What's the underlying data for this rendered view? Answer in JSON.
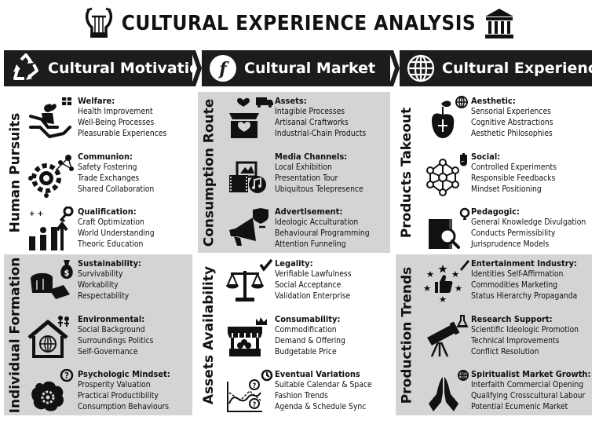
{
  "title": "CULTURAL EXPERIENCE ANALYSIS",
  "columns": [
    {
      "header": "Cultural Motivations",
      "header_icon": "recycle-icon",
      "sections": [
        {
          "label": "Human Pursuits",
          "items": [
            {
              "heading": "Welfare:",
              "icon": "caring-hands-icon",
              "lines": [
                "Health Improvement",
                "Well-Being Processes",
                "Pleasurable Experiences"
              ]
            },
            {
              "heading": "Communion:",
              "icon": "network-gear-icon",
              "lines": [
                "Safety Fostering",
                "Trade Exchanges",
                "Shared Collaboration"
              ]
            },
            {
              "heading": "Qualification:",
              "icon": "growth-people-icon",
              "lines": [
                "Craft Optimization",
                "World Understanding",
                "Theoric Education"
              ]
            }
          ]
        },
        {
          "label": "Individual Formation",
          "items": [
            {
              "heading": "Sustainability:",
              "icon": "bread-money-icon",
              "lines": [
                "Survivability",
                "Workability",
                "Respectability"
              ]
            },
            {
              "heading": "Environmental:",
              "icon": "house-globe-icon",
              "lines": [
                "Social Background",
                "Surroundings Politics",
                "Self-Governance"
              ]
            },
            {
              "heading": "Psychologic Mindset:",
              "icon": "brain-question-icon",
              "lines": [
                "Prosperity Valuation",
                "Practical Productibility",
                "Consumption Behaviours"
              ]
            }
          ]
        }
      ]
    },
    {
      "header": "Cultural Market",
      "header_icon": "florin-icon",
      "sections": [
        {
          "label": "Consumption Route",
          "items": [
            {
              "heading": "Assets:",
              "icon": "gift-truck-icon",
              "lines": [
                "Intagible Processes",
                "Artisanal Craftworks",
                "Industrial-Chain Products"
              ]
            },
            {
              "heading": "Media Channels:",
              "icon": "media-film-icon",
              "lines": [
                "Local Exhibition",
                "Presentation Tour",
                "Ubiquitous Telepresence"
              ]
            },
            {
              "heading": "Advertisement:",
              "icon": "megaphone-icon",
              "lines": [
                "Ideologic Acculturation",
                "Behavioural Programming",
                "Attention Funneling"
              ]
            }
          ]
        },
        {
          "label": "Assets Availability",
          "items": [
            {
              "heading": "Legality:",
              "icon": "scales-icon",
              "lines": [
                "Verifiable Lawfulness",
                "Social Acceptance",
                "Validation Enterprise"
              ]
            },
            {
              "heading": "Consumability:",
              "icon": "market-stall-icon",
              "lines": [
                "Commodification",
                "Demand & Offering",
                "Budgetable Price"
              ]
            },
            {
              "heading": "Eventual Variations",
              "icon": "chart-clock-icon",
              "lines": [
                "Suitable Calendar & Space",
                "Fashion Trends",
                "Agenda & Schedule Sync"
              ]
            }
          ]
        }
      ]
    },
    {
      "header": "Cultural Experience",
      "header_icon": "globe-icon",
      "sections": [
        {
          "label": "Products Takeout",
          "items": [
            {
              "heading": "Aesthetic:",
              "icon": "sprout-globe-icon",
              "lines": [
                "Sensorial Experiences",
                "Cognitive Abstractions",
                "Aesthetic Philosophies"
              ]
            },
            {
              "heading": "Social:",
              "icon": "people-network-icon",
              "lines": [
                "Controlled Experiments",
                "Responsible Feedbacks",
                "Mindset Positioning"
              ]
            },
            {
              "heading": "Pedagogic:",
              "icon": "book-magnifier-icon",
              "lines": [
                "General Knowledge Divulgation",
                "Conducts Permissibility",
                "Jurisprudence Models"
              ]
            }
          ]
        },
        {
          "label": "Production Trends",
          "items": [
            {
              "heading": "Entertainment Industry:",
              "icon": "thumbs-up-stars-icon",
              "lines": [
                "Identities Self-Affirmation",
                "Commodities Marketing",
                "Status Hierarchy Propaganda"
              ]
            },
            {
              "heading": "Research Support:",
              "icon": "telescope-icon",
              "lines": [
                "Scientific Ideologic Promotion",
                "Technical Improvements",
                "Conflict Resolution"
              ]
            },
            {
              "heading": "Spiritualist Market Growth:",
              "icon": "praying-hands-icon",
              "lines": [
                "Interfaith Commercial Opening",
                "Qualifying Crosscultural Labour",
                "Potential Ecumenic Market"
              ]
            }
          ]
        }
      ]
    }
  ]
}
